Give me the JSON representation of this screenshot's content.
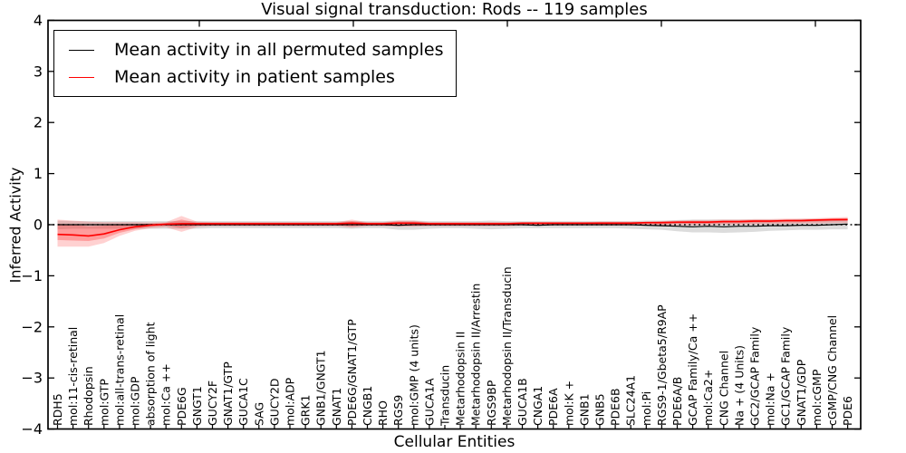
{
  "legend": {
    "items": [
      {
        "label": "Mean activity in all permuted samples",
        "color": "#000000"
      },
      {
        "label": "Mean activity in patient samples",
        "color": "#ff0000"
      }
    ]
  },
  "chart_data": {
    "type": "line",
    "title": "Visual signal transduction: Rods -- 119 samples",
    "xlabel": "Cellular Entities",
    "ylabel": "Inferred Activity",
    "ylim": [
      -4,
      4
    ],
    "grid": false,
    "legend_position": "upper left",
    "zero_line": {
      "style": "dotted",
      "color": "#000000"
    },
    "yticks": [
      {
        "v": 4,
        "label": "4"
      },
      {
        "v": 3,
        "label": "3"
      },
      {
        "v": 2,
        "label": "2"
      },
      {
        "v": 1,
        "label": "1"
      },
      {
        "v": 0,
        "label": "0"
      },
      {
        "v": -1,
        "label": "−1"
      },
      {
        "v": -2,
        "label": "−2"
      },
      {
        "v": -3,
        "label": "−3"
      },
      {
        "v": -4,
        "label": "−4"
      }
    ],
    "categories": [
      "RDH5",
      "mol:11-cis-retinal",
      "Rhodopsin",
      "mol:GTP",
      "mol:all-trans-retinal",
      "mol:GDP",
      "absorption of light",
      "mol:Ca ++",
      "PDE6G",
      "GNGT1",
      "GUCY2F",
      "GNAT1/GTP",
      "GUCA1C",
      "SAG",
      "GUCY2D",
      "mol:ADP",
      "GRK1",
      "GNB1/GNGT1",
      "GNAT1",
      "PDE6G/GNAT1/GTP",
      "CNGB1",
      "RHO",
      "RGS9",
      "mol:GMP (4 units)",
      "GUCA1A",
      "Transducin",
      "Metarhodopsin II",
      "Metarhodopsin II/Arrestin",
      "RGS9BP",
      "Metarhodopsin II/Transducin",
      "GUCA1B",
      "CNGA1",
      "PDE6A",
      "mol:K +",
      "GNB1",
      "GNB5",
      "PDE6B",
      "SLC24A1",
      "mol:Pi",
      "RGS9-1/Gbeta5/R9AP",
      "PDE6A/B",
      "GCAP Family/Ca ++",
      "mol:Ca2+",
      "CNG Channel",
      "Na + (4 Units)",
      "GC2/GCAP Family",
      "mol:Na +",
      "GC1/GCAP Family",
      "GNAT1/GDP",
      "mol:cGMP",
      "cGMP/CNG Channel",
      "PDE6"
    ],
    "series": [
      {
        "name": "Mean activity in all permuted samples",
        "color": "#000000",
        "width": 1.2,
        "values": [
          0,
          0,
          0,
          0,
          0,
          0,
          0,
          0,
          0,
          0,
          0,
          0,
          0,
          0,
          0,
          0,
          0,
          0,
          0,
          0,
          0,
          0,
          -0.01,
          0,
          0,
          0,
          0,
          0,
          0,
          0,
          0,
          -0.01,
          0,
          0,
          0,
          0,
          0,
          0,
          -0.01,
          -0.02,
          -0.03,
          -0.04,
          -0.03,
          -0.04,
          -0.03,
          -0.03,
          -0.02,
          -0.02,
          -0.01,
          -0.01,
          0,
          0.01
        ]
      },
      {
        "name": "Mean activity in patient samples",
        "color": "#ff0000",
        "width": 1.6,
        "values": [
          -0.19,
          -0.2,
          -0.22,
          -0.18,
          -0.1,
          -0.04,
          -0.01,
          0.01,
          0.02,
          0.02,
          0.02,
          0.02,
          0.02,
          0.02,
          0.02,
          0.02,
          0.02,
          0.02,
          0.02,
          0.03,
          0.02,
          0.02,
          0.03,
          0.03,
          0.02,
          0.02,
          0.02,
          0.02,
          0.02,
          0.02,
          0.03,
          0.03,
          0.03,
          0.03,
          0.03,
          0.03,
          0.03,
          0.03,
          0.04,
          0.04,
          0.05,
          0.05,
          0.05,
          0.06,
          0.06,
          0.07,
          0.07,
          0.08,
          0.08,
          0.09,
          0.1,
          0.1
        ]
      }
    ],
    "bands": [
      {
        "name": "permuted-spread",
        "color": "rgba(130,130,130,0.28)",
        "upper": [
          0.08,
          0.07,
          0.07,
          0.07,
          0.07,
          0.07,
          0.07,
          0.07,
          0.07,
          0.07,
          0.07,
          0.07,
          0.07,
          0.07,
          0.07,
          0.07,
          0.07,
          0.07,
          0.07,
          0.07,
          0.07,
          0.07,
          0.08,
          0.08,
          0.07,
          0.07,
          0.07,
          0.07,
          0.08,
          0.07,
          0.07,
          0.07,
          0.07,
          0.07,
          0.07,
          0.07,
          0.07,
          0.07,
          0.08,
          0.08,
          0.09,
          0.1,
          0.1,
          0.1,
          0.1,
          0.1,
          0.1,
          0.1,
          0.11,
          0.11,
          0.11,
          0.12
        ],
        "lower": [
          -0.09,
          -0.08,
          -0.08,
          -0.08,
          -0.08,
          -0.08,
          -0.08,
          -0.08,
          -0.08,
          -0.08,
          -0.07,
          -0.07,
          -0.07,
          -0.07,
          -0.07,
          -0.07,
          -0.07,
          -0.07,
          -0.07,
          -0.08,
          -0.07,
          -0.07,
          -0.1,
          -0.1,
          -0.08,
          -0.07,
          -0.07,
          -0.08,
          -0.09,
          -0.08,
          -0.07,
          -0.07,
          -0.07,
          -0.07,
          -0.07,
          -0.07,
          -0.07,
          -0.08,
          -0.09,
          -0.1,
          -0.13,
          -0.15,
          -0.15,
          -0.16,
          -0.15,
          -0.14,
          -0.12,
          -0.11,
          -0.1,
          -0.1,
          -0.09,
          -0.09
        ]
      },
      {
        "name": "patient-spread-outer",
        "color": "rgba(255,0,0,0.18)",
        "upper": [
          0.1,
          0.08,
          0.06,
          0.05,
          0.05,
          0.05,
          0.04,
          0.05,
          0.17,
          0.06,
          0.05,
          0.05,
          0.05,
          0.05,
          0.05,
          0.05,
          0.05,
          0.05,
          0.05,
          0.1,
          0.05,
          0.05,
          0.08,
          0.08,
          0.05,
          0.05,
          0.05,
          0.05,
          0.05,
          0.05,
          0.05,
          0.05,
          0.05,
          0.05,
          0.05,
          0.06,
          0.06,
          0.06,
          0.06,
          0.07,
          0.08,
          0.09,
          0.09,
          0.1,
          0.1,
          0.11,
          0.11,
          0.12,
          0.12,
          0.13,
          0.14,
          0.15
        ],
        "lower": [
          -0.43,
          -0.43,
          -0.43,
          -0.36,
          -0.22,
          -0.12,
          -0.07,
          -0.05,
          -0.14,
          -0.05,
          -0.03,
          -0.03,
          -0.03,
          -0.03,
          -0.03,
          -0.03,
          -0.03,
          -0.03,
          -0.03,
          -0.06,
          -0.03,
          -0.03,
          -0.04,
          -0.04,
          -0.03,
          -0.03,
          -0.03,
          -0.03,
          -0.03,
          -0.03,
          -0.02,
          -0.02,
          -0.02,
          -0.02,
          -0.02,
          -0.02,
          -0.02,
          -0.02,
          -0.02,
          -0.01,
          -0.01,
          -0.01,
          -0.01,
          0,
          0,
          0,
          0.01,
          0.01,
          0.02,
          0.02,
          0.03,
          0.03
        ]
      },
      {
        "name": "patient-spread-inner",
        "color": "rgba(255,0,0,0.25)",
        "upper": [
          0.02,
          0,
          -0.03,
          -0.02,
          0,
          0.01,
          0.02,
          0.03,
          0.1,
          0.04,
          0.04,
          0.04,
          0.04,
          0.04,
          0.04,
          0.04,
          0.04,
          0.04,
          0.04,
          0.07,
          0.04,
          0.04,
          0.06,
          0.06,
          0.04,
          0.04,
          0.04,
          0.04,
          0.04,
          0.04,
          0.04,
          0.04,
          0.04,
          0.04,
          0.04,
          0.05,
          0.05,
          0.05,
          0.05,
          0.06,
          0.06,
          0.07,
          0.07,
          0.08,
          0.08,
          0.09,
          0.09,
          0.1,
          0.1,
          0.11,
          0.12,
          0.13
        ],
        "lower": [
          -0.3,
          -0.31,
          -0.32,
          -0.27,
          -0.16,
          -0.09,
          -0.04,
          -0.02,
          -0.07,
          -0.02,
          -0.01,
          -0.01,
          -0.01,
          -0.01,
          -0.01,
          -0.01,
          -0.01,
          -0.01,
          -0.01,
          -0.03,
          -0.01,
          -0.01,
          -0.02,
          -0.02,
          -0.01,
          -0.01,
          -0.01,
          -0.01,
          -0.01,
          -0.01,
          0,
          0,
          0,
          0,
          0,
          0,
          0,
          0,
          0.01,
          0.01,
          0.02,
          0.02,
          0.02,
          0.03,
          0.03,
          0.04,
          0.04,
          0.05,
          0.05,
          0.06,
          0.07,
          0.08
        ]
      }
    ]
  }
}
